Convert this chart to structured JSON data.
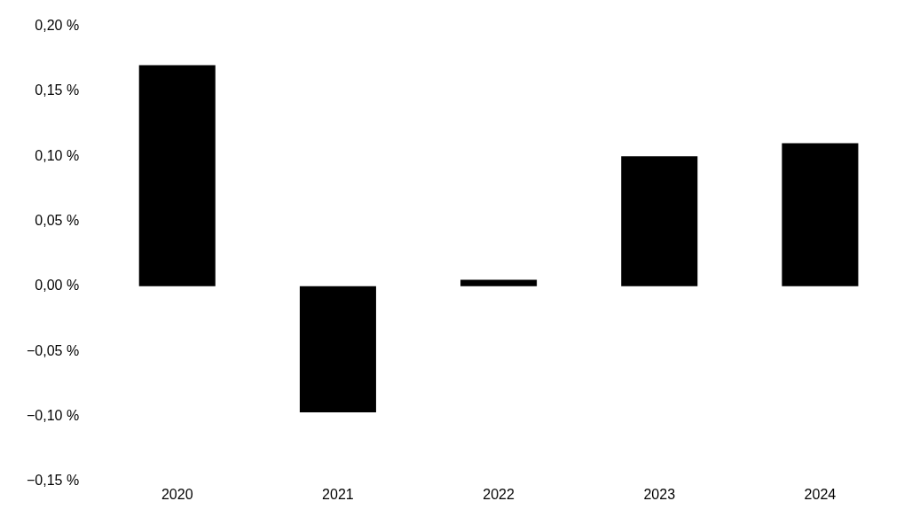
{
  "chart_data": {
    "type": "bar",
    "categories": [
      "2020",
      "2021",
      "2022",
      "2023",
      "2024"
    ],
    "values": [
      0.17,
      -0.097,
      0.005,
      0.1,
      0.11
    ],
    "color": "#000000",
    "ylim": [
      -0.15,
      0.2
    ],
    "yticks": [
      {
        "value": -0.15,
        "label": "−0,15 %"
      },
      {
        "value": -0.1,
        "label": "−0,10 %"
      },
      {
        "value": -0.05,
        "label": "−0,05 %"
      },
      {
        "value": 0,
        "label": "0,00 %"
      },
      {
        "value": 0.05,
        "label": "0,05 %"
      },
      {
        "value": 0.1,
        "label": "0,10 %"
      },
      {
        "value": 0.15,
        "label": "0,15 %"
      },
      {
        "value": 0.2,
        "label": "0,20 %"
      }
    ],
    "grid": false,
    "legend": false
  }
}
